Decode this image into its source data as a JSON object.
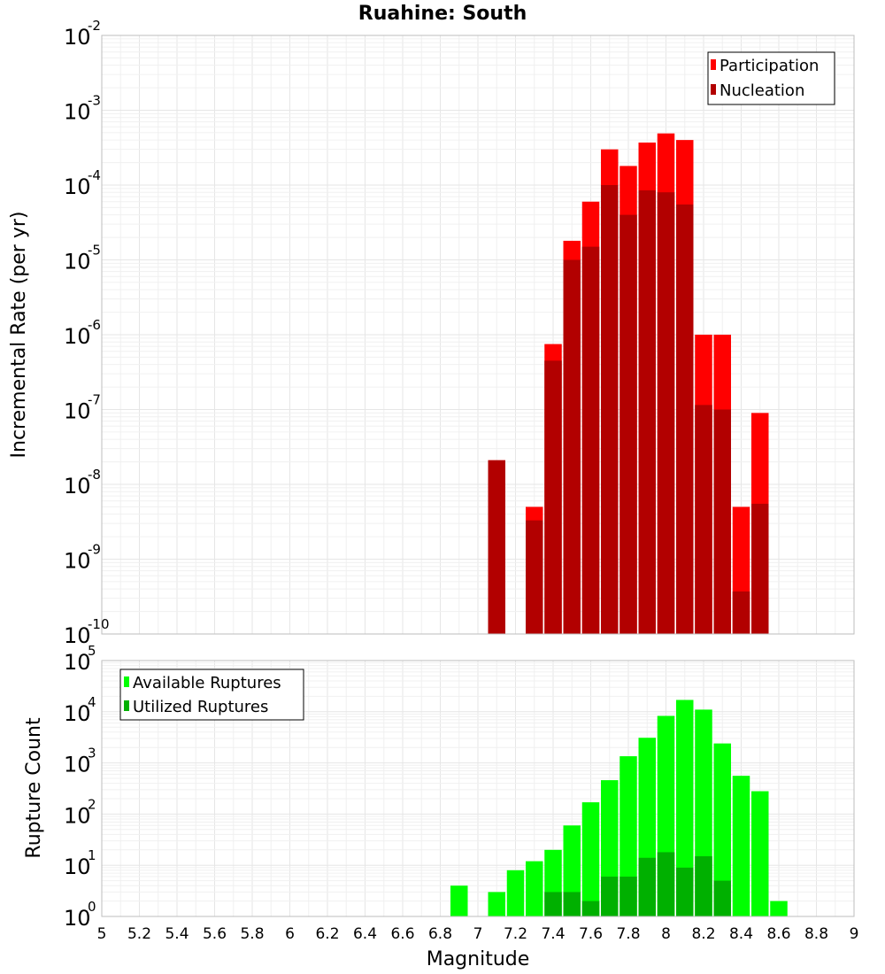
{
  "chart_data": [
    {
      "type": "bar",
      "title": "Ruahine: South",
      "ylabel": "Incremental Rate (per yr)",
      "xlabel": "",
      "xlim": [
        5,
        9
      ],
      "ylim": [
        1e-10,
        0.01
      ],
      "yscale": "log",
      "grid": true,
      "legend_position": "top-right",
      "x": [
        7.1,
        7.2,
        7.3,
        7.4,
        7.5,
        7.6,
        7.7,
        7.8,
        7.9,
        8.0,
        8.1,
        8.2,
        8.3,
        8.4,
        8.5,
        8.6
      ],
      "series": [
        {
          "name": "Participation",
          "color": "#ff0000",
          "values": [
            2.1e-08,
            null,
            5e-09,
            7.5e-07,
            1.8e-05,
            6e-05,
            0.0003,
            0.00018,
            0.00037,
            0.00049,
            0.0004,
            1e-06,
            1e-06,
            5e-09,
            9e-08,
            null
          ]
        },
        {
          "name": "Nucleation",
          "color": "#b20000",
          "values": [
            2.1e-08,
            null,
            3.3e-09,
            4.5e-07,
            1e-05,
            1.5e-05,
            0.0001,
            4e-05,
            8.5e-05,
            8e-05,
            5.5e-05,
            1.15e-07,
            1e-07,
            3.7e-10,
            5.5e-09,
            null
          ]
        }
      ],
      "ytick_exponents": [
        -10,
        -9,
        -8,
        -7,
        -6,
        -5,
        -4,
        -3,
        -2
      ]
    },
    {
      "type": "bar",
      "title": "",
      "ylabel": "Rupture Count",
      "xlabel": "Magnitude",
      "xlim": [
        5,
        9
      ],
      "ylim": [
        1,
        100000
      ],
      "yscale": "log",
      "grid": true,
      "legend_position": "top-left",
      "x": [
        6.9,
        7.0,
        7.1,
        7.2,
        7.3,
        7.4,
        7.5,
        7.6,
        7.7,
        7.8,
        7.9,
        8.0,
        8.1,
        8.2,
        8.3,
        8.4,
        8.5,
        8.6
      ],
      "series": [
        {
          "name": "Available Ruptures",
          "color": "#00ff00",
          "values": [
            4,
            null,
            3,
            8,
            12,
            20,
            60,
            170,
            460,
            1350,
            3100,
            8300,
            17000,
            11000,
            2400,
            560,
            280,
            2
          ]
        },
        {
          "name": "Utilized Ruptures",
          "color": "#00b000",
          "values": [
            null,
            null,
            1,
            null,
            null,
            3,
            3,
            2,
            6,
            6,
            14,
            18,
            9,
            15,
            5,
            1,
            1,
            1
          ]
        }
      ],
      "ytick_exponents": [
        0,
        1,
        2,
        3,
        4,
        5
      ]
    }
  ],
  "x_ticks": [
    "5",
    "5.2",
    "5.4",
    "5.6",
    "5.8",
    "6",
    "6.2",
    "6.4",
    "6.6",
    "6.8",
    "7",
    "7.2",
    "7.4",
    "7.6",
    "7.8",
    "8",
    "8.2",
    "8.4",
    "8.6",
    "8.8",
    "9"
  ]
}
